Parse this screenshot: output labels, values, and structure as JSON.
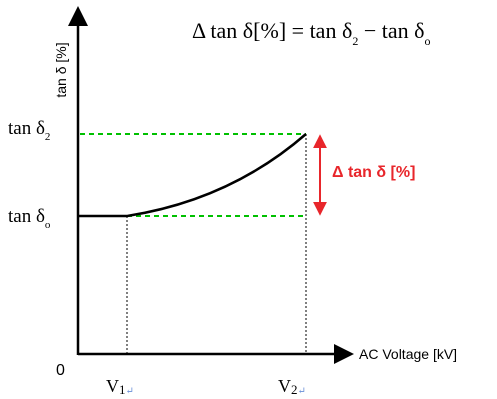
{
  "equation": {
    "lhs": "Δ tan δ[%] = tan δ",
    "sub_2": "2",
    "middle": " − tan δ",
    "sub_o": "o"
  },
  "y_axis": {
    "label": "tan δ [%]",
    "tick_upper": "tan δ",
    "tick_upper_sub": "2",
    "tick_lower": "tan δ",
    "tick_lower_sub": "o"
  },
  "x_axis": {
    "label": "AC Voltage [kV]",
    "origin": "0",
    "v1": "V",
    "v1_sub": "1",
    "v2": "V",
    "v2_sub": "2",
    "return_mark": "↵"
  },
  "delta_label": "Δ tan δ [%]",
  "colors": {
    "axis": "#000000",
    "curve": "#000000",
    "guide": "#00c000",
    "delta": "#e8262b"
  }
}
